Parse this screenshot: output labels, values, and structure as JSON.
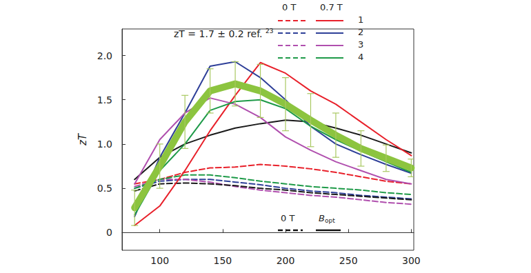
{
  "chart_data": {
    "type": "line",
    "y_label": "zT",
    "annotation": {
      "text": "zT = 1.7 ± 0.2 ref.",
      "superscript": "23"
    },
    "legend": "upper right",
    "legend_columns": [
      {
        "label": "0 T",
        "line_style": "dashed"
      },
      {
        "label": "0.7 T",
        "line_style": "solid"
      }
    ],
    "line_key": [
      {
        "label": "0 T",
        "line_style": "dashed"
      },
      {
        "label": "B",
        "subscript": "opt",
        "line_style": "solid"
      }
    ],
    "grid": false,
    "xlim": [
      70,
      302
    ],
    "xticks": [
      100,
      150,
      200,
      250,
      300
    ],
    "ylim": [
      -0.2,
      2.3
    ],
    "yticks": [
      0,
      0.5,
      {
        "value": 1,
        "label": "1.0"
      },
      1.5,
      {
        "value": 2,
        "label": "2.0"
      }
    ],
    "x": [
      80,
      100,
      120,
      140,
      160,
      180,
      200,
      220,
      240,
      260,
      280,
      300
    ],
    "series": [
      {
        "name": "1",
        "color": "#e8202a",
        "line_style": "dashed",
        "values": [
          0.55,
          0.6,
          0.68,
          0.73,
          0.74,
          0.77,
          0.75,
          0.72,
          0.68,
          0.63,
          0.58,
          0.55
        ]
      },
      {
        "name": "2",
        "color": "#2e3f98",
        "line_style": "dashed",
        "values": [
          0.5,
          0.58,
          0.6,
          0.6,
          0.57,
          0.54,
          0.5,
          0.47,
          0.45,
          0.42,
          0.4,
          0.38
        ]
      },
      {
        "name": "3",
        "color": "#b04fae",
        "line_style": "dashed",
        "values": [
          0.52,
          0.6,
          0.6,
          0.57,
          0.52,
          0.48,
          0.45,
          0.42,
          0.4,
          0.37,
          0.34,
          0.32
        ]
      },
      {
        "name": "4",
        "color": "#1e9a48",
        "line_style": "dashed",
        "values": [
          0.5,
          0.6,
          0.65,
          0.65,
          0.62,
          0.58,
          0.55,
          0.52,
          0.5,
          0.48,
          0.45,
          0.43
        ]
      },
      {
        "color": "#1a1a1a",
        "line_style": "dashed",
        "values": [
          0.47,
          0.55,
          0.56,
          0.55,
          0.53,
          0.5,
          0.48,
          0.45,
          0.43,
          0.41,
          0.39,
          0.37
        ]
      },
      {
        "color": "#1a1a1a",
        "line_style": "solid",
        "values": [
          0.6,
          0.85,
          1.0,
          1.1,
          1.18,
          1.23,
          1.27,
          1.25,
          1.18,
          1.1,
          1.0,
          0.9
        ]
      },
      {
        "name": "1",
        "color": "#e8202a",
        "line_style": "solid",
        "values": [
          0.08,
          0.3,
          0.7,
          1.15,
          1.55,
          1.92,
          1.8,
          1.6,
          1.45,
          1.25,
          1.05,
          0.87
        ]
      },
      {
        "name": "2",
        "color": "#2e3f98",
        "line_style": "solid",
        "values": [
          0.18,
          0.85,
          1.35,
          1.88,
          1.93,
          1.75,
          1.5,
          1.2,
          1.0,
          0.88,
          0.77,
          0.67
        ]
      },
      {
        "name": "3",
        "color": "#b04fae",
        "line_style": "solid",
        "values": [
          0.55,
          1.05,
          1.35,
          1.52,
          1.45,
          1.3,
          1.08,
          0.93,
          0.8,
          0.7,
          0.6,
          0.55
        ]
      },
      {
        "name": "4",
        "color": "#1e9a48",
        "line_style": "solid",
        "values": [
          0.2,
          0.7,
          1.0,
          1.38,
          1.48,
          1.5,
          1.4,
          1.2,
          1.05,
          0.92,
          0.8,
          0.68
        ]
      },
      {
        "color": "#8cc43f",
        "line_style": "solid",
        "values": [
          0.28,
          0.75,
          1.25,
          1.6,
          1.68,
          1.6,
          1.45,
          1.27,
          1.1,
          0.95,
          0.84,
          0.73
        ],
        "errors": [
          0.2,
          0.25,
          0.3,
          0.25,
          0.25,
          0.3,
          0.3,
          0.3,
          0.25,
          0.2,
          0.15,
          0.1
        ]
      }
    ]
  }
}
